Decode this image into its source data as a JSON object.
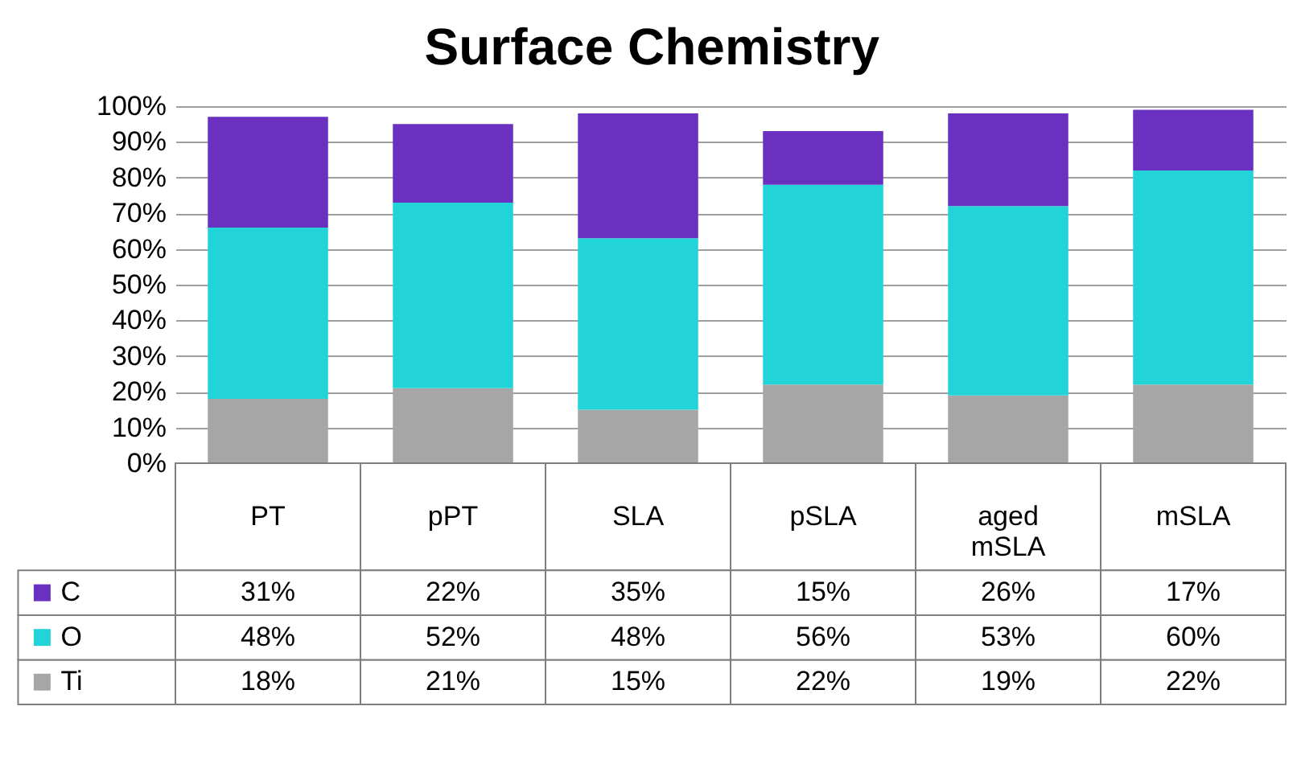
{
  "chart_data": {
    "type": "bar",
    "title": "Surface Chemistry",
    "stacked": true,
    "grid": "y",
    "legend": "bottom",
    "categories": [
      "PT",
      "pPT",
      "SLA",
      "pSLA",
      "aged mSLA",
      "mSLA"
    ],
    "ylim": [
      0,
      100
    ],
    "yticks": [
      {
        "value": 0,
        "label": "0%"
      },
      {
        "value": 10,
        "label": "10%"
      },
      {
        "value": 20,
        "label": "20%"
      },
      {
        "value": 30,
        "label": "30%"
      },
      {
        "value": 40,
        "label": "40%"
      },
      {
        "value": 50,
        "label": "50%"
      },
      {
        "value": 60,
        "label": "60%"
      },
      {
        "value": 70,
        "label": "70%"
      },
      {
        "value": 80,
        "label": "80%"
      },
      {
        "value": 90,
        "label": "90%"
      },
      {
        "value": 100,
        "label": "100%"
      }
    ],
    "series": [
      {
        "name": "Ti",
        "color": "#a6a6a6",
        "values": [
          18,
          21,
          15,
          22,
          19,
          22
        ],
        "value_labels": [
          "18%",
          "21%",
          "15%",
          "22%",
          "19%",
          "22%"
        ]
      },
      {
        "name": "O",
        "color": "#22d3d8",
        "values": [
          48,
          52,
          48,
          56,
          53,
          60
        ],
        "value_labels": [
          "48%",
          "52%",
          "48%",
          "56%",
          "53%",
          "60%"
        ]
      },
      {
        "name": "C",
        "color": "#6a30c0",
        "values": [
          31,
          22,
          35,
          15,
          26,
          17
        ],
        "value_labels": [
          "31%",
          "22%",
          "35%",
          "15%",
          "26%",
          "17%"
        ]
      }
    ]
  }
}
